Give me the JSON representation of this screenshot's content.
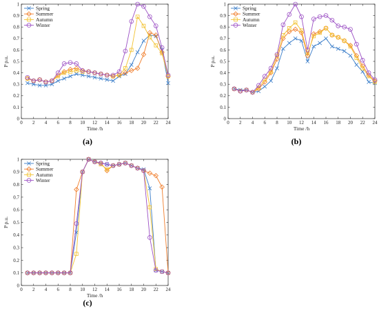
{
  "colors": {
    "Spring": "#3a7dc9",
    "Summer": "#f07d2b",
    "Autumn": "#f2c12e",
    "Winter": "#9b4fc4",
    "axis": "#222222"
  },
  "markers": {
    "Spring": "x",
    "Summer": "diamond",
    "Autumn": "square",
    "Winter": "circle"
  },
  "chart_data": [
    {
      "type": "line",
      "panel_label": "(a)",
      "xlabel": "Time /h",
      "ylabel": "P p.u.",
      "xlim": [
        0,
        24
      ],
      "ylim": [
        0,
        1
      ],
      "xticks": [
        0,
        2,
        4,
        6,
        8,
        10,
        12,
        14,
        16,
        18,
        20,
        22,
        24
      ],
      "yticks": [
        0,
        0.1,
        0.2,
        0.3,
        0.4,
        0.5,
        0.6,
        0.7,
        0.8,
        0.9,
        1
      ],
      "ytick_labels": [
        "0",
        "0.1",
        "0.2",
        "0.3",
        "0.4",
        "0.5",
        "0.6",
        "0.7",
        "0.8",
        "0.9",
        "1"
      ],
      "grid": false,
      "legend": "top-left",
      "x": [
        1,
        2,
        3,
        4,
        5,
        6,
        7,
        8,
        9,
        10,
        11,
        12,
        13,
        14,
        15,
        16,
        17,
        18,
        19,
        20,
        21,
        22,
        23,
        24
      ],
      "series": [
        {
          "name": "Spring",
          "values": [
            0.31,
            0.3,
            0.29,
            0.29,
            0.3,
            0.33,
            0.35,
            0.37,
            0.39,
            0.38,
            0.37,
            0.36,
            0.35,
            0.34,
            0.33,
            0.37,
            0.39,
            0.47,
            0.58,
            0.68,
            0.73,
            0.72,
            0.6,
            0.31
          ]
        },
        {
          "name": "Summer",
          "values": [
            0.35,
            0.33,
            0.34,
            0.32,
            0.33,
            0.38,
            0.41,
            0.43,
            0.44,
            0.42,
            0.41,
            0.4,
            0.39,
            0.38,
            0.37,
            0.38,
            0.4,
            0.42,
            0.44,
            0.56,
            0.75,
            0.73,
            0.58,
            0.37
          ]
        },
        {
          "name": "Autumn",
          "values": [
            0.35,
            0.33,
            0.34,
            0.32,
            0.33,
            0.37,
            0.4,
            0.41,
            0.42,
            0.41,
            0.41,
            0.4,
            0.39,
            0.38,
            0.37,
            0.38,
            0.44,
            0.6,
            0.89,
            0.81,
            0.71,
            0.64,
            0.57,
            0.37
          ]
        },
        {
          "name": "Winter",
          "values": [
            0.36,
            0.33,
            0.34,
            0.32,
            0.33,
            0.4,
            0.48,
            0.49,
            0.48,
            0.42,
            0.41,
            0.4,
            0.39,
            0.38,
            0.38,
            0.41,
            0.59,
            0.85,
            1.0,
            0.98,
            0.89,
            0.81,
            0.62,
            0.38
          ]
        }
      ]
    },
    {
      "type": "line",
      "panel_label": "(b)",
      "xlabel": "Time /h",
      "ylabel": "P p.u.",
      "xlim": [
        0,
        24
      ],
      "ylim": [
        0,
        1
      ],
      "xticks": [
        0,
        2,
        4,
        6,
        8,
        10,
        12,
        14,
        16,
        18,
        20,
        22,
        24
      ],
      "yticks": [
        0,
        0.1,
        0.2,
        0.3,
        0.4,
        0.5,
        0.6,
        0.7,
        0.8,
        0.9,
        1
      ],
      "ytick_labels": [
        "0",
        "0.1",
        "0.2",
        "0.3",
        "0.4",
        "0.5",
        "0.6",
        "0.7",
        "0.8",
        "0.9",
        "1"
      ],
      "grid": false,
      "legend": "top-left",
      "x": [
        1,
        2,
        3,
        4,
        5,
        6,
        7,
        8,
        9,
        10,
        11,
        12,
        13,
        14,
        15,
        16,
        17,
        18,
        19,
        20,
        21,
        22,
        23,
        24
      ],
      "series": [
        {
          "name": "Spring",
          "values": [
            0.26,
            0.25,
            0.25,
            0.23,
            0.24,
            0.28,
            0.33,
            0.44,
            0.61,
            0.66,
            0.7,
            0.68,
            0.5,
            0.63,
            0.66,
            0.7,
            0.63,
            0.61,
            0.59,
            0.55,
            0.47,
            0.41,
            0.32,
            0.31
          ]
        },
        {
          "name": "Summer",
          "values": [
            0.26,
            0.24,
            0.25,
            0.23,
            0.26,
            0.32,
            0.4,
            0.52,
            0.7,
            0.76,
            0.78,
            0.75,
            0.55,
            0.74,
            0.76,
            0.79,
            0.73,
            0.71,
            0.68,
            0.64,
            0.55,
            0.46,
            0.38,
            0.33
          ]
        },
        {
          "name": "Autumn",
          "values": [
            0.26,
            0.24,
            0.25,
            0.23,
            0.27,
            0.34,
            0.41,
            0.55,
            0.73,
            0.79,
            0.84,
            0.77,
            0.57,
            0.72,
            0.75,
            0.79,
            0.73,
            0.71,
            0.68,
            0.63,
            0.53,
            0.44,
            0.37,
            0.32
          ]
        },
        {
          "name": "Winter",
          "values": [
            0.26,
            0.24,
            0.25,
            0.23,
            0.29,
            0.37,
            0.44,
            0.56,
            0.82,
            0.91,
            1.0,
            0.89,
            0.6,
            0.87,
            0.89,
            0.9,
            0.86,
            0.81,
            0.8,
            0.78,
            0.65,
            0.51,
            0.4,
            0.34
          ]
        }
      ]
    },
    {
      "type": "line",
      "panel_label": "(c)",
      "xlabel": "Time /h",
      "ylabel": "P p.u.",
      "xlim": [
        0,
        24
      ],
      "ylim": [
        0,
        1
      ],
      "xticks": [
        0,
        2,
        4,
        6,
        8,
        10,
        12,
        14,
        16,
        18,
        20,
        22,
        24
      ],
      "yticks": [
        0,
        0.1,
        0.2,
        0.3,
        0.4,
        0.5,
        0.6,
        0.7,
        0.8,
        0.9,
        1
      ],
      "ytick_labels": [
        "0",
        "0.1",
        "0.2",
        "0.3",
        "0.4",
        "0.5",
        "0.6",
        "0.7",
        "0.8",
        "0.9",
        "1"
      ],
      "grid": false,
      "legend": "top-left",
      "x": [
        1,
        2,
        3,
        4,
        5,
        6,
        7,
        8,
        9,
        10,
        11,
        12,
        13,
        14,
        15,
        16,
        17,
        18,
        19,
        20,
        21,
        22,
        23,
        24
      ],
      "series": [
        {
          "name": "Spring",
          "values": [
            0.1,
            0.1,
            0.1,
            0.1,
            0.1,
            0.1,
            0.1,
            0.1,
            0.42,
            0.9,
            1.0,
            0.98,
            0.97,
            0.96,
            0.95,
            0.96,
            0.97,
            0.95,
            0.93,
            0.92,
            0.77,
            0.12,
            0.11,
            0.1
          ]
        },
        {
          "name": "Summer",
          "values": [
            0.1,
            0.1,
            0.1,
            0.1,
            0.1,
            0.1,
            0.1,
            0.1,
            0.76,
            0.9,
            1.0,
            0.98,
            0.97,
            0.91,
            0.95,
            0.96,
            0.97,
            0.95,
            0.93,
            0.91,
            0.89,
            0.87,
            0.78,
            0.1
          ]
        },
        {
          "name": "Autumn",
          "values": [
            0.1,
            0.1,
            0.1,
            0.1,
            0.1,
            0.1,
            0.1,
            0.1,
            0.25,
            0.9,
            1.0,
            0.98,
            0.96,
            0.92,
            0.95,
            0.96,
            0.97,
            0.95,
            0.93,
            0.91,
            0.62,
            0.13,
            0.11,
            0.1
          ]
        },
        {
          "name": "Winter",
          "values": [
            0.1,
            0.1,
            0.1,
            0.1,
            0.1,
            0.1,
            0.1,
            0.1,
            0.49,
            0.9,
            1.0,
            0.98,
            0.97,
            0.96,
            0.95,
            0.96,
            0.97,
            0.95,
            0.93,
            0.91,
            0.38,
            0.12,
            0.11,
            0.1
          ]
        }
      ]
    }
  ]
}
